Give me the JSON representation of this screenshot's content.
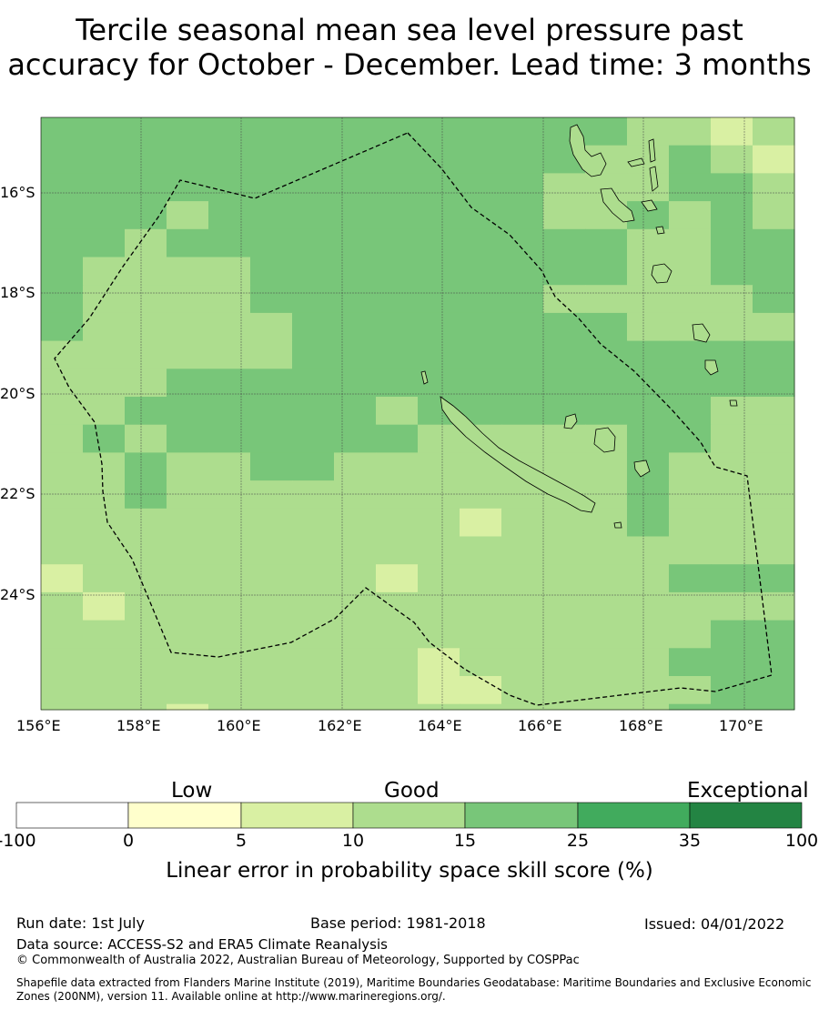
{
  "title_line1": "Tercile seasonal mean sea level pressure past",
  "title_line2": "accuracy for October - December. Lead time: 3 months",
  "map": {
    "lon_labels": [
      "156°E",
      "158°E",
      "160°E",
      "162°E",
      "164°E",
      "166°E",
      "168°E",
      "170°E"
    ],
    "lat_labels": [
      "16°S",
      "18°S",
      "20°S",
      "22°S",
      "24°S"
    ]
  },
  "legend": {
    "categories": {
      "low": "Low",
      "good": "Good",
      "exceptional": "Exceptional"
    },
    "ticks": [
      "-100",
      "0",
      "5",
      "10",
      "15",
      "25",
      "35",
      "100"
    ],
    "colors": [
      "#ffffff",
      "#ffffcc",
      "#d9f0a3",
      "#addd8e",
      "#78c679",
      "#41ab5d",
      "#238443"
    ],
    "title": "Linear error in probability space skill score (%)"
  },
  "footer": {
    "run_date": "Run date: 1st July",
    "base_period": "Base period: 1981-2018",
    "issued": "Issued: 04/01/2022",
    "data_source": "Data source: ACCESS-S2 and ERA5 Climate Reanalysis",
    "copyright": "© Commonwealth of Australia 2022, Australian Bureau of Meteorology, Supported by COSPPac",
    "shapefile": "Shapefile data extracted from Flanders Marine Institute (2019), Maritime Boundaries Geodatabase: Maritime Boundaries and Exclusive Economic Zones (200NM), version 11. Available online at http://www.marineregions.org/."
  }
}
